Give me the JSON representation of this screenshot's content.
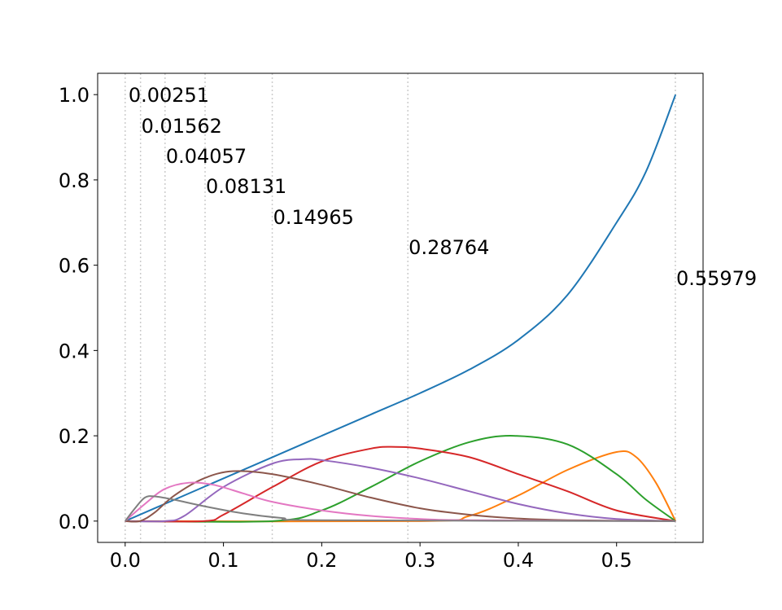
{
  "chart_data": {
    "type": "line",
    "title": "",
    "xlabel": "",
    "ylabel": "",
    "xlim": [
      -0.028,
      0.588
    ],
    "ylim": [
      -0.05,
      1.05
    ],
    "grid": false,
    "x_ticks": [
      {
        "value": 0.0,
        "label": "0.0"
      },
      {
        "value": 0.1,
        "label": "0.1"
      },
      {
        "value": 0.2,
        "label": "0.2"
      },
      {
        "value": 0.3,
        "label": "0.3"
      },
      {
        "value": 0.4,
        "label": "0.4"
      },
      {
        "value": 0.5,
        "label": "0.5"
      }
    ],
    "y_ticks": [
      {
        "value": 0.0,
        "label": "0.0"
      },
      {
        "value": 0.2,
        "label": "0.2"
      },
      {
        "value": 0.4,
        "label": "0.4"
      },
      {
        "value": 0.6,
        "label": "0.6"
      },
      {
        "value": 0.8,
        "label": "0.8"
      },
      {
        "value": 1.0,
        "label": "1.0"
      }
    ],
    "vertical_lines": [
      {
        "x": 0.0,
        "color": "#cccccc",
        "style": "dotted"
      },
      {
        "x": 0.01562,
        "color": "#cccccc",
        "style": "dotted"
      },
      {
        "x": 0.04057,
        "color": "#cccccc",
        "style": "dotted"
      },
      {
        "x": 0.08131,
        "color": "#cccccc",
        "style": "dotted"
      },
      {
        "x": 0.14965,
        "color": "#cccccc",
        "style": "dotted"
      },
      {
        "x": 0.28764,
        "color": "#cccccc",
        "style": "dotted"
      },
      {
        "x": 0.55979,
        "color": "#cccccc",
        "style": "dotted"
      }
    ],
    "annotations": [
      {
        "text": "0.00251",
        "x": 0.0025,
        "y": 1.0
      },
      {
        "text": "0.01562",
        "x": 0.0156,
        "y": 0.928
      },
      {
        "text": "0.04057",
        "x": 0.0406,
        "y": 0.857
      },
      {
        "text": "0.08131",
        "x": 0.0813,
        "y": 0.786
      },
      {
        "text": "0.14965",
        "x": 0.1497,
        "y": 0.714
      },
      {
        "text": "0.28764",
        "x": 0.2876,
        "y": 0.643
      },
      {
        "text": "0.55979",
        "x": 0.5598,
        "y": 0.571
      }
    ],
    "series": [
      {
        "color": "#1f77b4",
        "points": [
          [
            0.0,
            0.0
          ],
          [
            0.05,
            0.05
          ],
          [
            0.1,
            0.1
          ],
          [
            0.15,
            0.15
          ],
          [
            0.2,
            0.2
          ],
          [
            0.25,
            0.25
          ],
          [
            0.3,
            0.3
          ],
          [
            0.35,
            0.355
          ],
          [
            0.4,
            0.425
          ],
          [
            0.45,
            0.53
          ],
          [
            0.5,
            0.7
          ],
          [
            0.53,
            0.82
          ],
          [
            0.56,
            1.0
          ]
        ]
      },
      {
        "color": "#ff7f0e",
        "points": [
          [
            0.0,
            0.0
          ],
          [
            0.3,
            0.0
          ],
          [
            0.35,
            0.012
          ],
          [
            0.4,
            0.06
          ],
          [
            0.45,
            0.12
          ],
          [
            0.5,
            0.162
          ],
          [
            0.52,
            0.15
          ],
          [
            0.54,
            0.09
          ],
          [
            0.56,
            0.0
          ]
        ]
      },
      {
        "color": "#2ca02c",
        "points": [
          [
            0.0,
            0.0
          ],
          [
            0.15,
            0.0
          ],
          [
            0.2,
            0.025
          ],
          [
            0.25,
            0.08
          ],
          [
            0.3,
            0.14
          ],
          [
            0.35,
            0.185
          ],
          [
            0.395,
            0.2
          ],
          [
            0.45,
            0.18
          ],
          [
            0.5,
            0.11
          ],
          [
            0.53,
            0.05
          ],
          [
            0.56,
            0.0
          ]
        ]
      },
      {
        "color": "#d62728",
        "points": [
          [
            0.0,
            0.0
          ],
          [
            0.08,
            0.0
          ],
          [
            0.1,
            0.015
          ],
          [
            0.15,
            0.08
          ],
          [
            0.2,
            0.14
          ],
          [
            0.25,
            0.17
          ],
          [
            0.275,
            0.174
          ],
          [
            0.3,
            0.17
          ],
          [
            0.35,
            0.15
          ],
          [
            0.4,
            0.11
          ],
          [
            0.45,
            0.07
          ],
          [
            0.5,
            0.025
          ],
          [
            0.56,
            0.0
          ]
        ]
      },
      {
        "color": "#9467bd",
        "points": [
          [
            0.0,
            0.0
          ],
          [
            0.04,
            0.0
          ],
          [
            0.06,
            0.012
          ],
          [
            0.1,
            0.08
          ],
          [
            0.15,
            0.135
          ],
          [
            0.18,
            0.145
          ],
          [
            0.2,
            0.143
          ],
          [
            0.25,
            0.125
          ],
          [
            0.3,
            0.1
          ],
          [
            0.35,
            0.07
          ],
          [
            0.4,
            0.04
          ],
          [
            0.45,
            0.018
          ],
          [
            0.5,
            0.005
          ],
          [
            0.56,
            0.0
          ]
        ]
      },
      {
        "color": "#8c564b",
        "points": [
          [
            0.0,
            0.0
          ],
          [
            0.015,
            0.0
          ],
          [
            0.03,
            0.02
          ],
          [
            0.05,
            0.06
          ],
          [
            0.08,
            0.1
          ],
          [
            0.11,
            0.117
          ],
          [
            0.15,
            0.11
          ],
          [
            0.2,
            0.085
          ],
          [
            0.25,
            0.055
          ],
          [
            0.3,
            0.03
          ],
          [
            0.35,
            0.015
          ],
          [
            0.4,
            0.006
          ],
          [
            0.45,
            0.002
          ],
          [
            0.56,
            0.0
          ]
        ]
      },
      {
        "color": "#e377c2",
        "points": [
          [
            0.0,
            0.0
          ],
          [
            0.02,
            0.04
          ],
          [
            0.04,
            0.075
          ],
          [
            0.065,
            0.09
          ],
          [
            0.09,
            0.085
          ],
          [
            0.12,
            0.065
          ],
          [
            0.15,
            0.045
          ],
          [
            0.2,
            0.025
          ],
          [
            0.25,
            0.012
          ],
          [
            0.3,
            0.005
          ],
          [
            0.35,
            0.002
          ],
          [
            0.56,
            0.0
          ]
        ]
      },
      {
        "color": "#7f7f7f",
        "points": [
          [
            0.0,
            0.0
          ],
          [
            0.01,
            0.03
          ],
          [
            0.02,
            0.055
          ],
          [
            0.03,
            0.058
          ],
          [
            0.05,
            0.05
          ],
          [
            0.08,
            0.035
          ],
          [
            0.12,
            0.018
          ],
          [
            0.16,
            0.007
          ],
          [
            0.2,
            0.002
          ],
          [
            0.56,
            0.0
          ]
        ]
      }
    ]
  }
}
